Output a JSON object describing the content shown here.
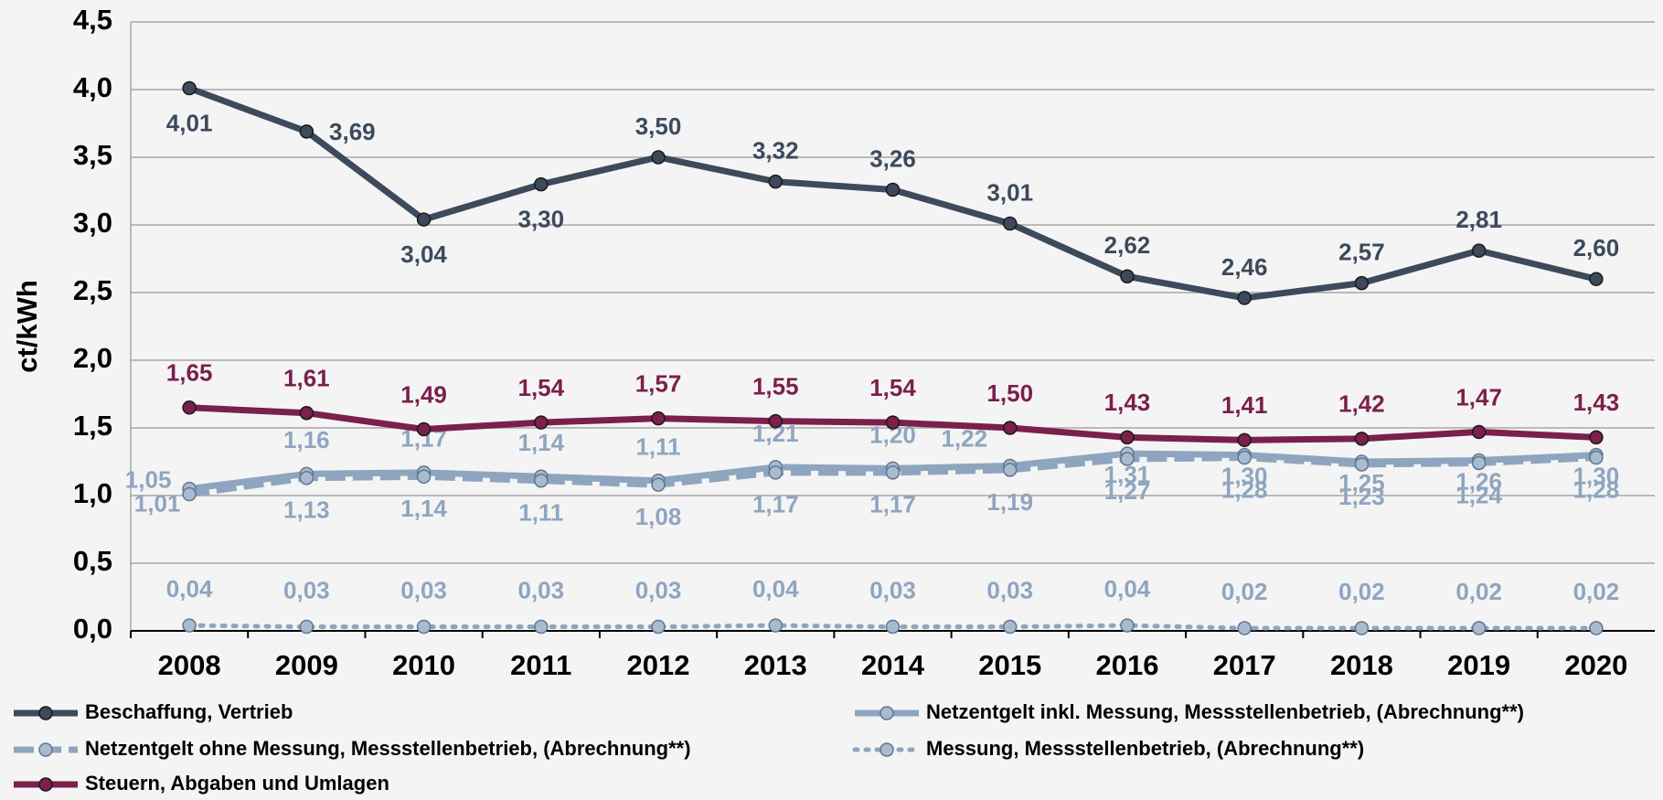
{
  "chart_data": {
    "type": "line",
    "y_label": "ct/kWh",
    "categories": [
      "2008",
      "2009",
      "2010",
      "2011",
      "2012",
      "2013",
      "2014",
      "2015",
      "2016",
      "2017",
      "2018",
      "2019",
      "2020"
    ],
    "ylim": [
      0,
      4.5
    ],
    "yticks": [
      {
        "value": 0,
        "label": "0,0"
      },
      {
        "value": 0.5,
        "label": "0,5"
      },
      {
        "value": 1,
        "label": "1,0"
      },
      {
        "value": 1.5,
        "label": "1,5"
      },
      {
        "value": 2,
        "label": "2,0"
      },
      {
        "value": 2.5,
        "label": "2,5"
      },
      {
        "value": 3,
        "label": "3,0"
      },
      {
        "value": 3.5,
        "label": "3,5"
      },
      {
        "value": 4,
        "label": "4,0"
      },
      {
        "value": 4.5,
        "label": "4,5"
      }
    ],
    "grid": true,
    "series": [
      {
        "name": "Beschaffung, Vertrieb",
        "color": "#3d4a5c",
        "dash": "solid",
        "values": [
          4.01,
          3.69,
          3.04,
          3.3,
          3.5,
          3.32,
          3.26,
          3.01,
          2.62,
          2.46,
          2.57,
          2.81,
          2.6
        ],
        "value_labels": [
          "4,01",
          "3,69",
          "3,04",
          "3,30",
          "3,50",
          "3,32",
          "3,26",
          "3,01",
          "2,62",
          "2,46",
          "2,57",
          "2,81",
          "2,60"
        ]
      },
      {
        "name": "Netzentgelt inkl. Messung, Messstellenbetrieb, (Abrechnung**)",
        "color": "#8fa5bf",
        "dash": "solid",
        "values": [
          1.05,
          1.16,
          1.17,
          1.14,
          1.11,
          1.21,
          1.2,
          1.22,
          1.31,
          1.3,
          1.25,
          1.26,
          1.3
        ],
        "value_labels": [
          "1,05",
          "1,16",
          "1,17",
          "1,14",
          "1,11",
          "1,21",
          "1,20",
          "1,22",
          "1,31",
          "1,30",
          "1,25",
          "1,26",
          "1,30"
        ]
      },
      {
        "name": "Netzentgelt ohne Messung, Messstellenbetrieb, (Abrechnung**)",
        "color": "#8fa5bf",
        "dash": "dashed",
        "values": [
          1.01,
          1.13,
          1.14,
          1.11,
          1.08,
          1.17,
          1.17,
          1.19,
          1.27,
          1.28,
          1.23,
          1.24,
          1.28
        ],
        "value_labels": [
          "1,01",
          "1,13",
          "1,14",
          "1,11",
          "1,08",
          "1,17",
          "1,17",
          "1,19",
          "1,27",
          "1,28",
          "1,23",
          "1,24",
          "1,28"
        ]
      },
      {
        "name": "Messung, Messstellenbetrieb, (Abrechnung**)",
        "color": "#8fa5bf",
        "dash": "dotted",
        "values": [
          0.04,
          0.03,
          0.03,
          0.03,
          0.03,
          0.04,
          0.03,
          0.03,
          0.04,
          0.02,
          0.02,
          0.02,
          0.02
        ],
        "value_labels": [
          "0,04",
          "0,03",
          "0,03",
          "0,03",
          "0,03",
          "0,04",
          "0,03",
          "0,03",
          "0,04",
          "0,02",
          "0,02",
          "0,02",
          "0,02"
        ]
      },
      {
        "name": "Steuern, Abgaben und Umlagen",
        "color": "#7b1f4b",
        "dash": "solid",
        "values": [
          1.65,
          1.61,
          1.49,
          1.54,
          1.57,
          1.55,
          1.54,
          1.5,
          1.43,
          1.41,
          1.42,
          1.47,
          1.43
        ],
        "value_labels": [
          "1,65",
          "1,61",
          "1,49",
          "1,54",
          "1,57",
          "1,55",
          "1,54",
          "1,50",
          "1,43",
          "1,41",
          "1,42",
          "1,47",
          "1,43"
        ]
      }
    ]
  }
}
